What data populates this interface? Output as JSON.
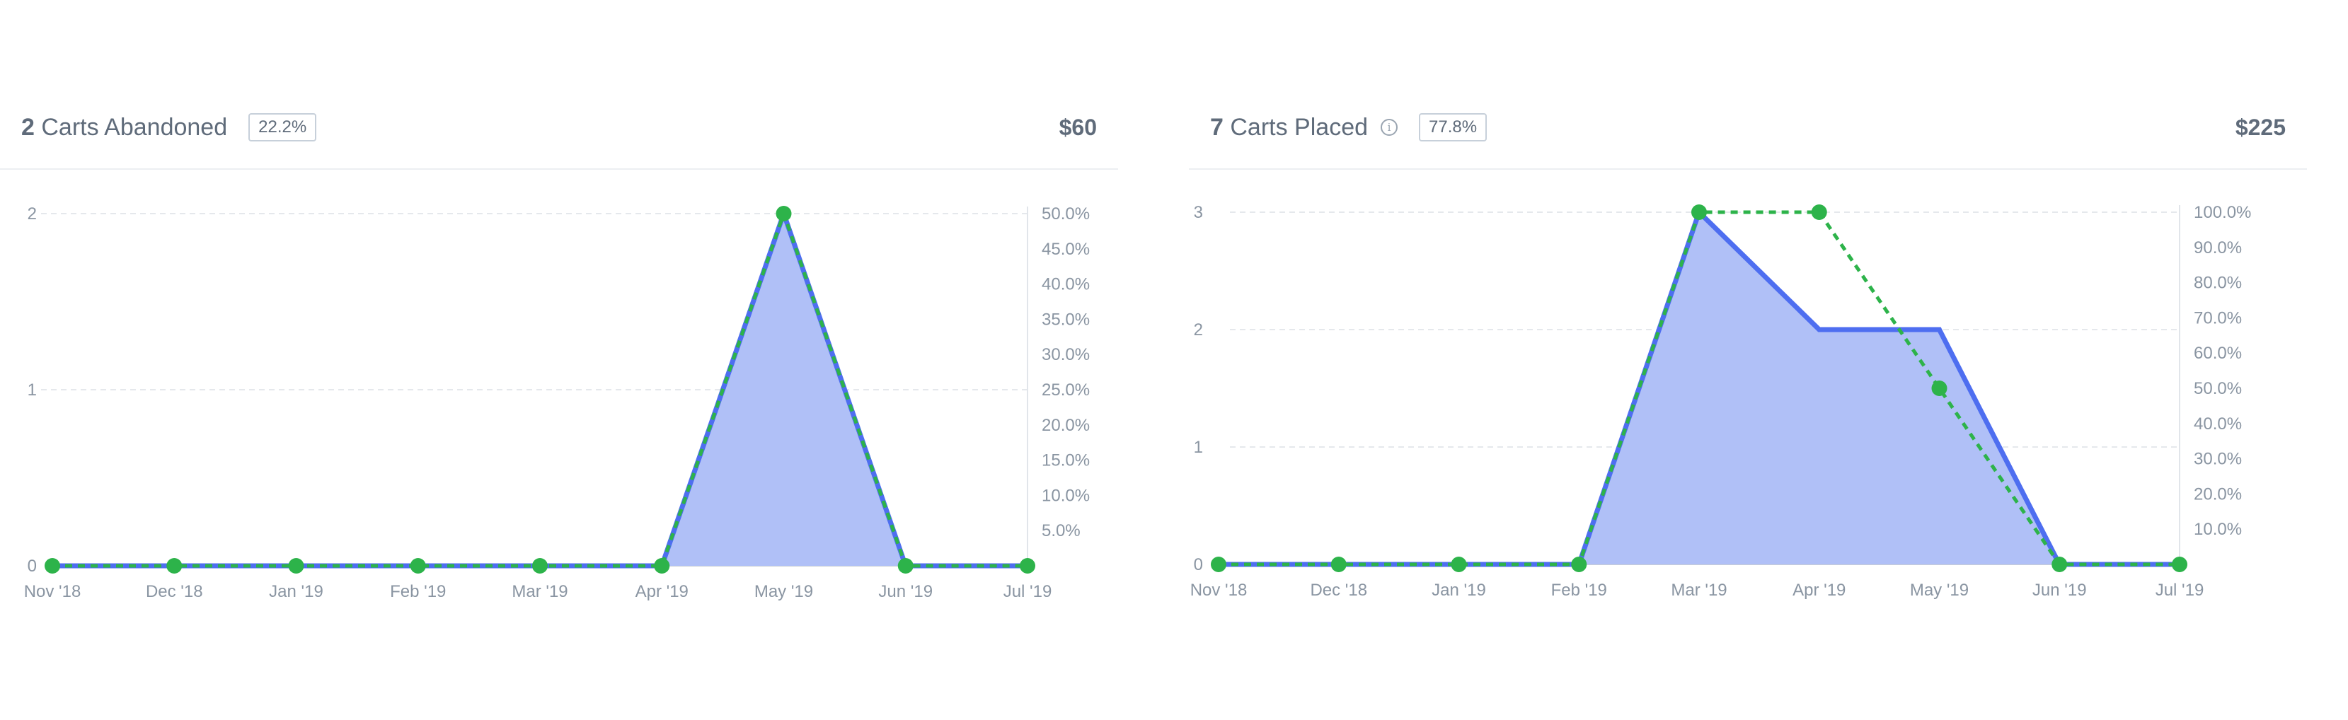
{
  "panels": {
    "abandoned": {
      "count": "2",
      "title_text": "Carts Abandoned",
      "percent_badge": "22.2%",
      "amount": "$60"
    },
    "placed": {
      "count": "7",
      "title_text": "Carts Placed",
      "percent_badge": "77.8%",
      "amount": "$225",
      "info_icon": "info-icon"
    }
  },
  "colors": {
    "area_fill": "#b0c0f7",
    "area_line": "#4e6ef0",
    "dots": "#2db34a",
    "grid": "#e5e8ec"
  },
  "chart_data": [
    {
      "type": "area",
      "title": "",
      "categories": [
        "Nov '18",
        "Dec '18",
        "Jan '19",
        "Feb '19",
        "Mar '19",
        "Apr '19",
        "May '19",
        "Jun '19",
        "Jul '19"
      ],
      "series": [
        {
          "values": [
            0,
            0,
            0,
            0,
            0,
            0,
            2,
            0,
            0
          ],
          "axis": "left",
          "style": "area"
        },
        {
          "values": [
            0,
            0,
            0,
            0,
            0,
            0,
            50,
            0,
            0
          ],
          "axis": "right",
          "style": "dotted-line-markers"
        }
      ],
      "ylim": [
        0,
        2
      ],
      "yticks": [
        "0",
        "1",
        "2"
      ],
      "y2lim": [
        0,
        50
      ],
      "y2ticks": [
        "5.0%",
        "10.0%",
        "15.0%",
        "20.0%",
        "25.0%",
        "30.0%",
        "35.0%",
        "40.0%",
        "45.0%",
        "50.0%"
      ],
      "grid": true
    },
    {
      "type": "area",
      "title": "",
      "categories": [
        "Nov '18",
        "Dec '18",
        "Jan '19",
        "Feb '19",
        "Mar '19",
        "Apr '19",
        "May '19",
        "Jun '19",
        "Jul '19"
      ],
      "series": [
        {
          "values": [
            0,
            0,
            0,
            0,
            3,
            2,
            2,
            0,
            0
          ],
          "axis": "left",
          "style": "area"
        },
        {
          "values": [
            0,
            0,
            0,
            0,
            100,
            100,
            50,
            0,
            0
          ],
          "axis": "right",
          "style": "dotted-line-markers"
        }
      ],
      "ylim": [
        0,
        3
      ],
      "yticks": [
        "0",
        "1",
        "2",
        "3"
      ],
      "y2lim": [
        0,
        100
      ],
      "y2ticks": [
        "10.0%",
        "20.0%",
        "30.0%",
        "40.0%",
        "50.0%",
        "60.0%",
        "70.0%",
        "80.0%",
        "90.0%",
        "100.0%"
      ],
      "grid": true
    }
  ]
}
